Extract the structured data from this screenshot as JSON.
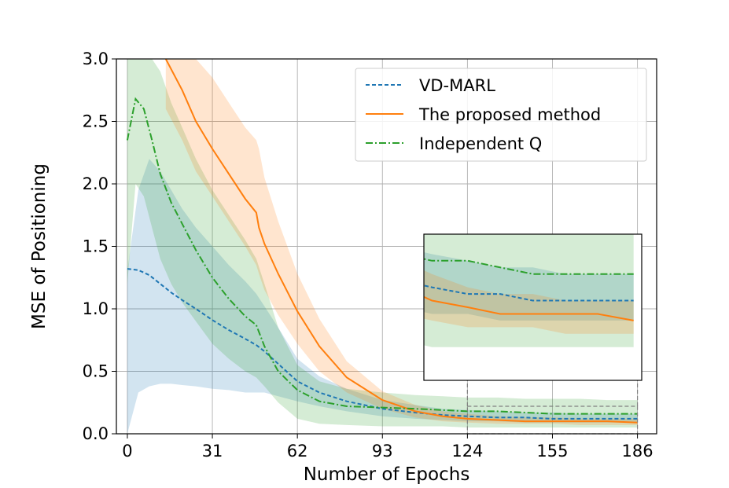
{
  "chart_data": {
    "type": "line",
    "title": "",
    "xlabel": "Number of Epochs",
    "ylabel": "MSE of Positioning",
    "xlim": [
      -4,
      193
    ],
    "ylim": [
      0,
      3.0
    ],
    "xticks": [
      0,
      31,
      62,
      93,
      124,
      155,
      186
    ],
    "yticks": [
      0.0,
      0.5,
      1.0,
      1.5,
      2.0,
      2.5,
      3.0
    ],
    "ytick_labels": [
      "0.0",
      "0.5",
      "1.0",
      "1.5",
      "2.0",
      "2.5",
      "3.0"
    ],
    "grid": true,
    "legend": {
      "position": "top-right"
    },
    "series": [
      {
        "name": "VD-MARL",
        "color": "#1f77b4",
        "style": "dashed",
        "x": [
          0,
          4,
          8,
          12,
          16,
          20,
          25,
          31,
          37,
          43,
          47,
          50,
          55,
          62,
          70,
          80,
          93,
          105,
          115,
          124,
          135,
          145,
          155,
          165,
          175,
          186
        ],
        "y": [
          1.32,
          1.31,
          1.27,
          1.2,
          1.13,
          1.07,
          1.0,
          0.91,
          0.83,
          0.76,
          0.71,
          0.66,
          0.56,
          0.42,
          0.33,
          0.26,
          0.2,
          0.17,
          0.15,
          0.14,
          0.13,
          0.13,
          0.12,
          0.12,
          0.12,
          0.12
        ],
        "lower": [
          0.0,
          0.33,
          0.38,
          0.4,
          0.4,
          0.39,
          0.38,
          0.36,
          0.35,
          0.33,
          0.33,
          0.33,
          0.3,
          0.26,
          0.22,
          0.18,
          0.14,
          0.12,
          0.11,
          0.1,
          0.1,
          0.09,
          0.09,
          0.09,
          0.09,
          0.09
        ],
        "upper": [
          1.3,
          1.95,
          2.2,
          2.1,
          1.95,
          1.8,
          1.65,
          1.5,
          1.35,
          1.22,
          1.12,
          1.02,
          0.85,
          0.6,
          0.46,
          0.36,
          0.27,
          0.23,
          0.2,
          0.19,
          0.18,
          0.17,
          0.17,
          0.16,
          0.16,
          0.16
        ]
      },
      {
        "name": "The proposed method",
        "color": "#ff7f0e",
        "style": "solid",
        "x": [
          14,
          20,
          25,
          31,
          37,
          43,
          47,
          48,
          50,
          55,
          62,
          70,
          80,
          93,
          105,
          115,
          124,
          135,
          145,
          155,
          165,
          175,
          186
        ],
        "y": [
          3.0,
          2.75,
          2.5,
          2.28,
          2.08,
          1.88,
          1.77,
          1.65,
          1.52,
          1.28,
          0.98,
          0.7,
          0.45,
          0.27,
          0.18,
          0.14,
          0.12,
          0.11,
          0.1,
          0.1,
          0.1,
          0.1,
          0.09
        ],
        "lower": [
          2.6,
          2.35,
          2.1,
          1.9,
          1.7,
          1.5,
          1.35,
          1.28,
          1.15,
          0.95,
          0.72,
          0.5,
          0.33,
          0.2,
          0.13,
          0.1,
          0.09,
          0.08,
          0.08,
          0.08,
          0.07,
          0.07,
          0.07
        ],
        "upper": [
          3.0,
          3.0,
          3.0,
          2.85,
          2.65,
          2.45,
          2.35,
          2.28,
          2.05,
          1.7,
          1.28,
          0.92,
          0.58,
          0.34,
          0.23,
          0.18,
          0.16,
          0.14,
          0.13,
          0.13,
          0.12,
          0.12,
          0.12
        ]
      },
      {
        "name": "Independent Q",
        "color": "#2ca02c",
        "style": "dashdot",
        "x": [
          0,
          3,
          6,
          9,
          12,
          16,
          20,
          25,
          31,
          37,
          43,
          47,
          50,
          55,
          62,
          70,
          80,
          93,
          105,
          115,
          124,
          135,
          145,
          155,
          165,
          175,
          186
        ],
        "y": [
          2.35,
          2.68,
          2.6,
          2.35,
          2.08,
          1.85,
          1.68,
          1.47,
          1.25,
          1.08,
          0.94,
          0.87,
          0.7,
          0.5,
          0.35,
          0.26,
          0.22,
          0.21,
          0.2,
          0.19,
          0.18,
          0.18,
          0.17,
          0.16,
          0.16,
          0.16,
          0.16
        ],
        "lower": [
          1.2,
          2.0,
          1.9,
          1.65,
          1.4,
          1.2,
          1.05,
          0.9,
          0.72,
          0.6,
          0.5,
          0.45,
          0.38,
          0.25,
          0.12,
          0.08,
          0.07,
          0.06,
          0.06,
          0.06,
          0.05,
          0.05,
          0.05,
          0.05,
          0.05,
          0.05,
          0.05
        ],
        "upper": [
          3.0,
          3.0,
          3.0,
          3.0,
          2.9,
          2.65,
          2.45,
          2.2,
          1.95,
          1.75,
          1.55,
          1.4,
          1.2,
          0.85,
          0.55,
          0.42,
          0.36,
          0.33,
          0.31,
          0.3,
          0.29,
          0.29,
          0.28,
          0.28,
          0.28,
          0.27,
          0.27
        ]
      }
    ],
    "inset": {
      "x_range": [
        124,
        186
      ],
      "y_range": [
        0.0,
        0.22
      ]
    }
  }
}
